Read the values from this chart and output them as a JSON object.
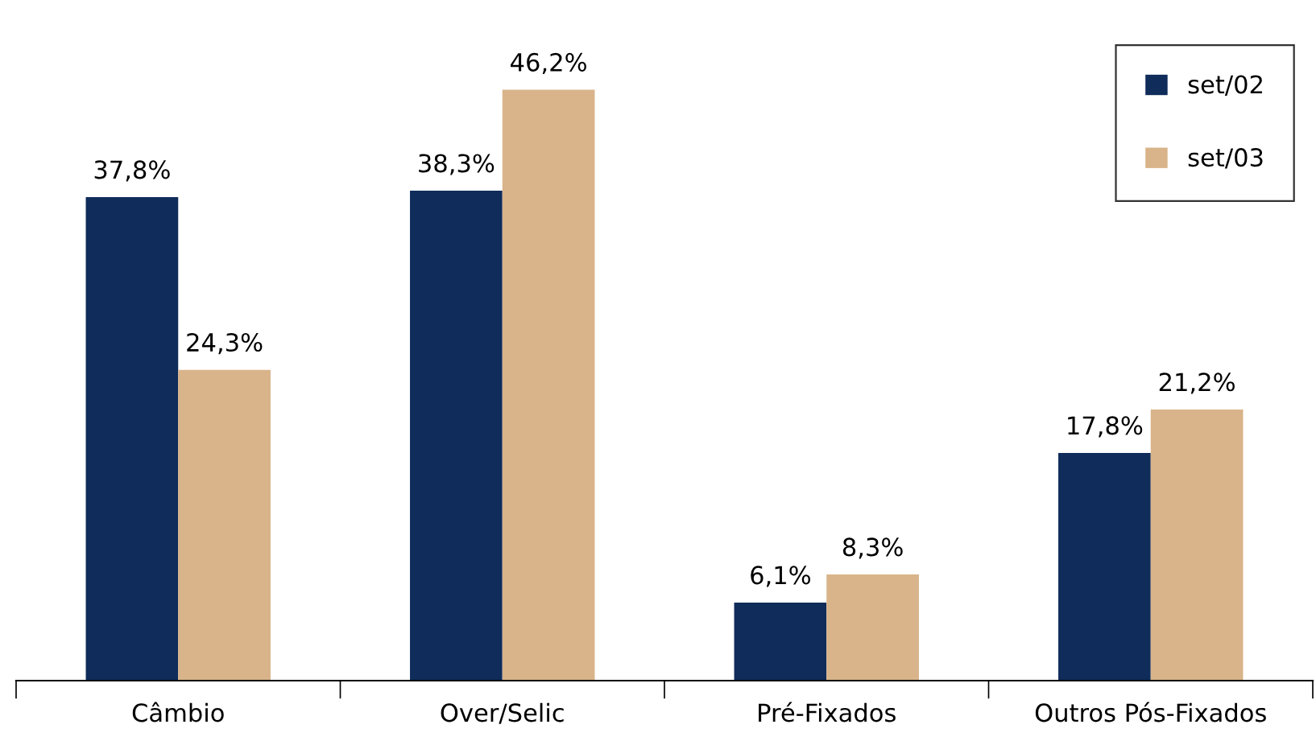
{
  "chart_data": {
    "type": "bar",
    "categories": [
      "Câmbio",
      "Over/Selic",
      "Pré-Fixados",
      "Outros Pós-Fixados"
    ],
    "series": [
      {
        "name": "set/02",
        "color": "#0f2c5a",
        "values": [
          37.8,
          38.3,
          6.1,
          17.8
        ],
        "value_labels": [
          "37,8%",
          "38,3%",
          "6,1%",
          "17,8%"
        ]
      },
      {
        "name": "set/03",
        "color": "#d9b48a",
        "values": [
          24.3,
          46.2,
          8.3,
          21.2
        ],
        "value_labels": [
          "24,3%",
          "46,2%",
          "8,3%",
          "21,2%"
        ]
      }
    ],
    "legend": "top right",
    "grid": false
  }
}
